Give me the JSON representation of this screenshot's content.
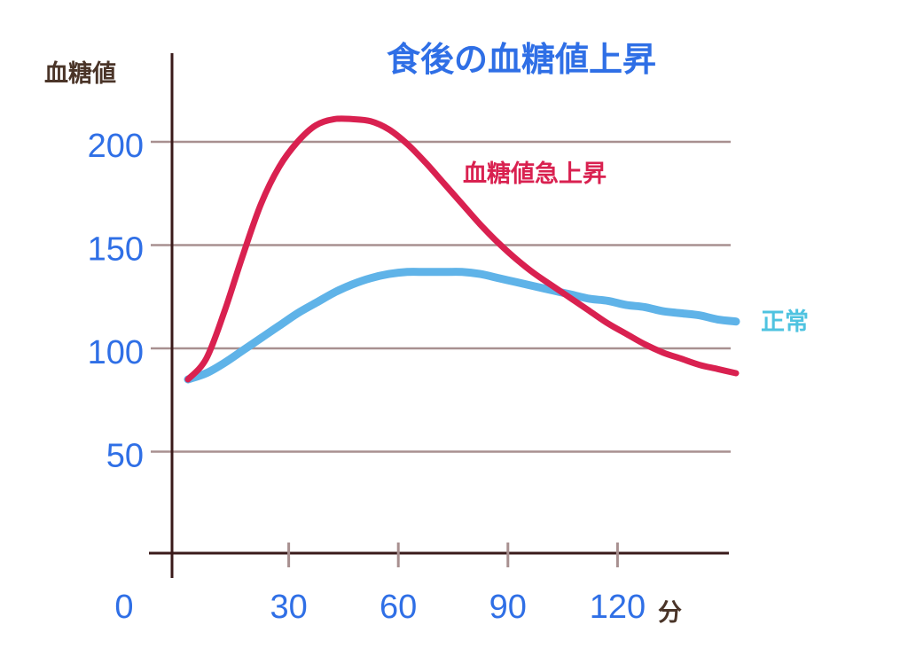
{
  "chart_data": {
    "type": "line",
    "title": "食後の血糖値上昇",
    "ylabel": "血糖値",
    "xlabel": "分",
    "x_origin_label": "0",
    "xlim": [
      0,
      150
    ],
    "ylim": [
      0,
      250
    ],
    "yticks": [
      50,
      100,
      150,
      200
    ],
    "xticks": [
      30,
      60,
      90,
      120
    ],
    "grid": true,
    "colors": {
      "title": "#2f6fe6",
      "ylabel": "#4a3428",
      "xlabel": "#4a3428",
      "tick_labels": "#2f6fe6",
      "axis": "#3a1a1a",
      "grid": "#a89090"
    },
    "series": [
      {
        "name": "血糖値急上昇",
        "color": "#d92150",
        "label_color": "#d92150",
        "x": [
          0,
          5,
          10,
          15,
          20,
          25,
          30,
          35,
          40,
          45,
          50,
          55,
          60,
          65,
          70,
          75,
          80,
          85,
          90,
          95,
          100,
          105,
          110,
          115,
          120,
          125,
          130,
          135,
          140,
          145,
          150
        ],
        "y": [
          85,
          95,
          118,
          145,
          170,
          188,
          200,
          208,
          211,
          211,
          210,
          206,
          199,
          190,
          180,
          170,
          160,
          151,
          143,
          136,
          130,
          124,
          118,
          112,
          107,
          102,
          98,
          95,
          92,
          90,
          88
        ]
      },
      {
        "name": "正常",
        "color": "#5fb3e8",
        "label_color": "#4fc3e0",
        "x": [
          0,
          5,
          10,
          15,
          20,
          25,
          30,
          35,
          40,
          45,
          50,
          55,
          60,
          65,
          70,
          75,
          80,
          85,
          90,
          95,
          100,
          105,
          110,
          115,
          120,
          125,
          130,
          135,
          140,
          145,
          150
        ],
        "y": [
          85,
          88,
          93,
          99,
          105,
          111,
          117,
          122,
          127,
          131,
          134,
          136,
          137,
          137,
          137,
          137,
          136,
          134,
          132,
          130,
          128,
          126,
          124,
          123,
          121,
          120,
          118,
          117,
          116,
          114,
          113
        ]
      }
    ]
  }
}
